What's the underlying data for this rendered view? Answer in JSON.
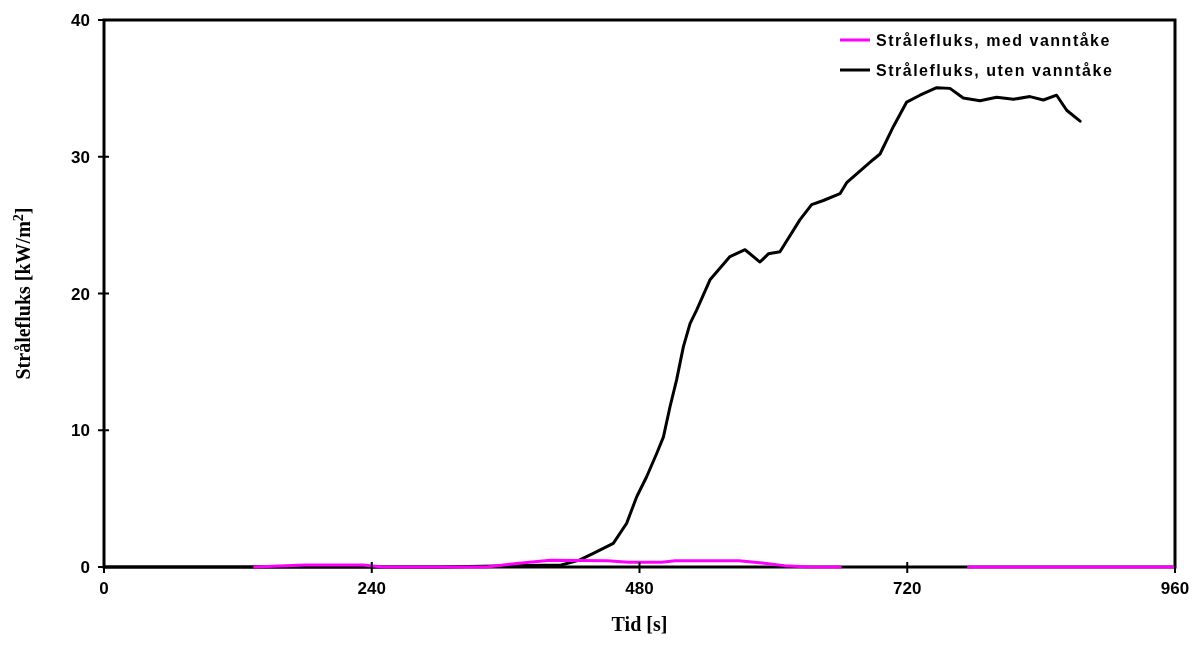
{
  "chart_data": {
    "type": "line",
    "xlabel": "Tid [s]",
    "ylabel": "Strålefluks [kW/m$^{2}$]",
    "xlim": [
      0,
      960
    ],
    "ylim": [
      0,
      40
    ],
    "xticks": [
      0,
      240,
      480,
      720,
      960
    ],
    "yticks": [
      0,
      10,
      20,
      30,
      40
    ],
    "grid": false,
    "legend": "top right",
    "marker": "none",
    "line_style": "solid",
    "series": [
      {
        "name": "Strålefluks, med vanntåke",
        "color": "#ff00ff",
        "x": [
          135,
          180,
          232,
          250,
          330,
          343,
          370,
          400,
          451,
          470,
          500,
          512,
          569,
          590,
          610,
          633,
          660,
          695,
          775,
          850,
          960
        ],
        "values": [
          0,
          0.15,
          0.15,
          0,
          0,
          0,
          0.25,
          0.5,
          0.45,
          0.35,
          0.35,
          0.45,
          0.45,
          0.3,
          0.1,
          0,
          0,
          null,
          0,
          0,
          0
        ]
      },
      {
        "name": "Strålefluks, uten vanntåke",
        "color": "#000000",
        "x": [
          0,
          301,
          410,
          426,
          438.6,
          456.5,
          468.5,
          477.5,
          486.4,
          495.4,
          501.4,
          507.3,
          513.3,
          519.3,
          525.3,
          531.3,
          543.2,
          561.1,
          574.6,
          588,
          595.5,
          605.9,
          623.9,
          634.3,
          644.8,
          659.7,
          665.7,
          689.6,
          695.6,
          707.5,
          719.5,
          731.4,
          746.4,
          758.3,
          770.2,
          785.2,
          800.1,
          815.1,
          830,
          842,
          853.9,
          862.9,
          874.9
        ],
        "values": [
          0,
          0,
          0.15,
          0.5,
          1.0,
          1.73,
          3.2,
          5.14,
          6.6,
          8.3,
          9.5,
          11.7,
          13.7,
          16.1,
          17.8,
          18.8,
          21.0,
          22.7,
          23.2,
          22.3,
          22.9,
          23.05,
          25.4,
          26.5,
          26.8,
          27.3,
          28.1,
          29.8,
          30.2,
          32.2,
          34.0,
          34.5,
          35.05,
          35.0,
          34.3,
          34.1,
          34.35,
          34.2,
          34.4,
          34.15,
          34.5,
          33.4,
          32.6
        ]
      }
    ]
  }
}
